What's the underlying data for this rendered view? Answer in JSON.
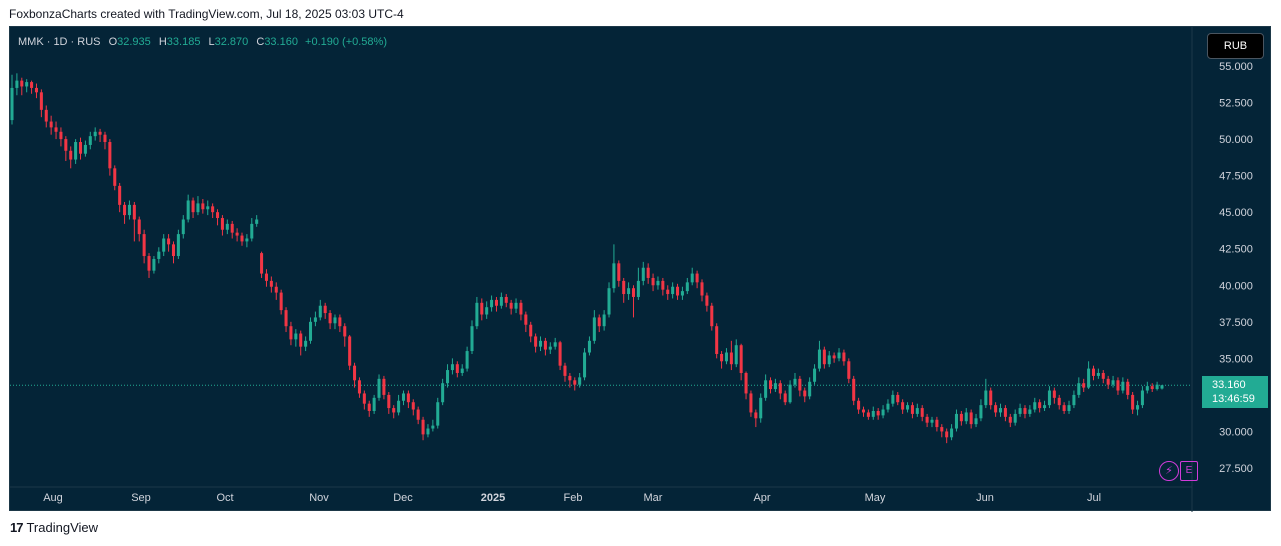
{
  "header": {
    "text": "FoxbonzaCharts created with TradingView.com, Jul 18, 2025 03:03 UTC-4"
  },
  "legend": {
    "symbol": "MMK · 1D · RUS",
    "open_label": "O",
    "open": "32.935",
    "high_label": "H",
    "high": "33.185",
    "low_label": "L",
    "low": "32.870",
    "close_label": "C",
    "close": "33.160",
    "change": "+0.190 (+0.58%)"
  },
  "currency_button": "RUB",
  "price_tag": {
    "price": "33.160",
    "countdown": "13:46:59"
  },
  "icons": {
    "flash": "lightning-icon",
    "e_button": "E"
  },
  "footer": {
    "logo": "17",
    "brand": "TradingView"
  },
  "colors": {
    "up": "#22ab94",
    "down": "#f23645",
    "background": "#042437"
  },
  "chart_data": {
    "type": "candlestick",
    "y_axis": {
      "ticks": [
        "55.000",
        "52.500",
        "50.000",
        "47.500",
        "45.000",
        "42.500",
        "40.000",
        "37.500",
        "35.000",
        "32.500",
        "30.000",
        "27.500"
      ],
      "ylim": [
        26.5,
        56.5
      ]
    },
    "x_axis": {
      "labels": [
        "Aug",
        "Sep",
        "Oct",
        "Nov",
        "Dec",
        "2025",
        "Feb",
        "Mar",
        "Apr",
        "May",
        "Jun",
        "Jul"
      ]
    },
    "candles": [
      [
        51.3,
        53.5,
        54.4,
        51.0
      ],
      [
        53.5,
        54.0,
        54.5,
        53.0
      ],
      [
        54.0,
        53.6,
        54.2,
        53.0
      ],
      [
        53.6,
        53.9,
        54.1,
        53.2
      ],
      [
        53.9,
        53.5,
        54.0,
        53.1
      ],
      [
        53.5,
        53.2,
        53.8,
        52.8
      ],
      [
        53.2,
        52.0,
        53.4,
        51.5
      ],
      [
        52.0,
        51.2,
        52.3,
        50.8
      ],
      [
        51.2,
        50.8,
        51.6,
        50.3
      ],
      [
        50.8,
        50.5,
        51.2,
        50.0
      ],
      [
        50.5,
        50.0,
        50.8,
        49.5
      ],
      [
        50.0,
        49.2,
        50.2,
        48.5
      ],
      [
        49.2,
        48.6,
        49.5,
        48.0
      ],
      [
        48.6,
        49.8,
        50.0,
        48.3
      ],
      [
        49.8,
        49.0,
        50.1,
        48.6
      ],
      [
        49.0,
        49.6,
        49.9,
        48.8
      ],
      [
        49.6,
        50.2,
        50.5,
        49.3
      ],
      [
        50.2,
        50.5,
        50.8,
        49.9
      ],
      [
        50.5,
        50.3,
        50.7,
        49.8
      ],
      [
        50.3,
        49.8,
        50.5,
        49.3
      ],
      [
        49.8,
        48.0,
        50.0,
        47.5
      ],
      [
        48.0,
        46.8,
        48.2,
        46.5
      ],
      [
        46.8,
        45.5,
        47.0,
        45.0
      ],
      [
        45.5,
        44.8,
        45.7,
        44.2
      ],
      [
        44.8,
        45.5,
        45.8,
        44.5
      ],
      [
        45.5,
        44.5,
        45.7,
        43.0
      ],
      [
        44.5,
        43.5,
        44.7,
        43.0
      ],
      [
        43.5,
        42.0,
        43.8,
        41.5
      ],
      [
        42.0,
        41.0,
        42.2,
        40.5
      ],
      [
        41.0,
        41.8,
        42.0,
        40.8
      ],
      [
        41.8,
        42.3,
        42.6,
        41.5
      ],
      [
        42.3,
        43.2,
        43.5,
        42.0
      ],
      [
        43.2,
        42.8,
        43.5,
        42.3
      ],
      [
        42.8,
        42.0,
        43.0,
        41.5
      ],
      [
        42.0,
        43.5,
        43.8,
        41.8
      ],
      [
        43.5,
        44.5,
        44.8,
        43.2
      ],
      [
        44.5,
        45.8,
        46.2,
        44.3
      ],
      [
        45.8,
        45.0,
        46.0,
        44.6
      ],
      [
        45.0,
        45.6,
        46.1,
        44.8
      ],
      [
        45.6,
        45.2,
        45.9,
        44.9
      ],
      [
        45.2,
        45.4,
        45.8,
        44.8
      ],
      [
        45.4,
        45.0,
        45.6,
        44.6
      ],
      [
        45.0,
        44.6,
        45.2,
        44.1
      ],
      [
        44.6,
        43.8,
        44.8,
        43.4
      ],
      [
        43.8,
        44.2,
        44.5,
        43.5
      ],
      [
        44.2,
        43.6,
        44.4,
        43.2
      ],
      [
        43.6,
        43.4,
        43.9,
        43.0
      ],
      [
        43.4,
        43.0,
        43.6,
        42.7
      ],
      [
        43.0,
        43.2,
        43.5,
        42.6
      ],
      [
        43.2,
        44.2,
        44.6,
        43.0
      ],
      [
        44.2,
        44.5,
        44.8,
        44.0
      ],
      [
        42.2,
        40.8,
        42.3,
        40.5
      ],
      [
        40.8,
        40.3,
        41.1,
        39.9
      ],
      [
        40.3,
        39.9,
        40.6,
        39.5
      ],
      [
        39.9,
        39.5,
        40.2,
        39.0
      ],
      [
        39.5,
        38.3,
        39.7,
        38.0
      ],
      [
        38.3,
        37.2,
        38.5,
        36.8
      ],
      [
        37.2,
        36.3,
        37.5,
        35.9
      ],
      [
        36.3,
        36.7,
        37.0,
        35.8
      ],
      [
        36.7,
        35.8,
        36.9,
        35.2
      ],
      [
        35.8,
        36.2,
        36.5,
        35.5
      ],
      [
        36.2,
        37.5,
        37.8,
        36.0
      ],
      [
        37.5,
        37.8,
        38.2,
        37.2
      ],
      [
        37.8,
        38.6,
        39.0,
        37.6
      ],
      [
        38.6,
        38.1,
        38.8,
        37.7
      ],
      [
        38.1,
        37.4,
        38.3,
        37.0
      ],
      [
        37.4,
        37.8,
        38.0,
        37.0
      ],
      [
        37.8,
        37.2,
        38.0,
        36.8
      ],
      [
        37.2,
        36.5,
        37.4,
        35.8
      ],
      [
        36.5,
        34.5,
        36.6,
        34.2
      ],
      [
        34.5,
        33.5,
        34.7,
        33.0
      ],
      [
        33.5,
        32.6,
        33.7,
        32.3
      ],
      [
        32.6,
        31.9,
        32.8,
        31.5
      ],
      [
        31.9,
        31.4,
        32.1,
        31.0
      ],
      [
        31.4,
        32.3,
        32.5,
        31.2
      ],
      [
        32.3,
        33.6,
        33.9,
        32.1
      ],
      [
        33.6,
        32.5,
        33.8,
        32.2
      ],
      [
        32.5,
        31.6,
        32.7,
        31.2
      ],
      [
        31.6,
        31.3,
        31.8,
        30.9
      ],
      [
        31.3,
        32.1,
        32.5,
        31.1
      ],
      [
        32.1,
        32.6,
        32.8,
        31.8
      ],
      [
        32.6,
        32.0,
        32.8,
        31.6
      ],
      [
        32.0,
        31.5,
        32.2,
        31.1
      ],
      [
        31.5,
        30.8,
        31.7,
        30.5
      ],
      [
        30.8,
        29.8,
        31.0,
        29.4
      ],
      [
        29.8,
        30.2,
        30.5,
        29.6
      ],
      [
        30.2,
        30.4,
        30.8,
        30.0
      ],
      [
        30.4,
        32.0,
        32.3,
        30.2
      ],
      [
        32.0,
        33.3,
        33.6,
        31.8
      ],
      [
        33.3,
        34.2,
        34.6,
        33.0
      ],
      [
        34.2,
        34.6,
        35.0,
        33.9
      ],
      [
        34.6,
        34.0,
        34.8,
        33.7
      ],
      [
        34.0,
        34.3,
        34.6,
        33.8
      ],
      [
        34.3,
        35.5,
        35.8,
        34.1
      ],
      [
        35.5,
        37.2,
        37.6,
        35.3
      ],
      [
        37.2,
        38.8,
        39.2,
        37.0
      ],
      [
        38.8,
        38.0,
        39.1,
        37.6
      ],
      [
        38.0,
        38.5,
        38.9,
        37.7
      ],
      [
        38.5,
        39.0,
        39.3,
        38.2
      ],
      [
        39.0,
        38.6,
        39.2,
        38.2
      ],
      [
        38.6,
        39.2,
        39.5,
        38.4
      ],
      [
        39.2,
        38.8,
        39.4,
        38.5
      ],
      [
        38.8,
        38.4,
        39.0,
        38.0
      ],
      [
        38.4,
        38.8,
        39.1,
        38.1
      ],
      [
        38.8,
        38.0,
        39.0,
        37.6
      ],
      [
        38.0,
        37.3,
        38.2,
        36.8
      ],
      [
        37.3,
        36.5,
        37.5,
        36.1
      ],
      [
        36.5,
        35.8,
        36.7,
        35.4
      ],
      [
        35.8,
        36.2,
        36.5,
        35.5
      ],
      [
        36.2,
        35.6,
        36.4,
        35.2
      ],
      [
        35.6,
        35.8,
        36.1,
        35.3
      ],
      [
        35.8,
        36.1,
        36.4,
        35.6
      ],
      [
        36.1,
        34.5,
        36.2,
        34.2
      ],
      [
        34.5,
        33.8,
        34.7,
        33.4
      ],
      [
        33.8,
        33.5,
        34.0,
        33.0
      ],
      [
        33.5,
        33.2,
        33.7,
        32.8
      ],
      [
        33.2,
        33.7,
        34.0,
        33.0
      ],
      [
        33.7,
        35.4,
        35.7,
        33.5
      ],
      [
        35.4,
        36.2,
        36.5,
        35.2
      ],
      [
        36.2,
        37.8,
        38.3,
        36.0
      ],
      [
        37.8,
        37.2,
        38.0,
        36.8
      ],
      [
        37.2,
        38.0,
        38.3,
        36.9
      ],
      [
        38.0,
        39.8,
        40.2,
        37.8
      ],
      [
        39.8,
        41.5,
        42.8,
        39.5
      ],
      [
        41.5,
        40.3,
        41.7,
        39.9
      ],
      [
        40.3,
        39.4,
        40.5,
        38.8
      ],
      [
        39.4,
        39.8,
        40.2,
        39.0
      ],
      [
        39.8,
        39.2,
        40.0,
        37.8
      ],
      [
        39.2,
        40.3,
        41.2,
        39.0
      ],
      [
        40.3,
        41.2,
        41.6,
        40.0
      ],
      [
        41.2,
        40.5,
        41.5,
        40.1
      ],
      [
        40.5,
        40.0,
        40.8,
        39.6
      ],
      [
        40.0,
        40.3,
        40.6,
        39.7
      ],
      [
        40.3,
        39.7,
        40.5,
        39.3
      ],
      [
        39.7,
        39.4,
        40.0,
        39.0
      ],
      [
        39.4,
        39.9,
        40.2,
        39.1
      ],
      [
        39.9,
        39.3,
        40.1,
        39.0
      ],
      [
        39.3,
        39.6,
        39.9,
        39.0
      ],
      [
        39.6,
        40.2,
        40.5,
        39.4
      ],
      [
        40.2,
        40.8,
        41.2,
        40.0
      ],
      [
        40.8,
        40.2,
        41.0,
        39.8
      ],
      [
        40.2,
        39.3,
        40.4,
        38.9
      ],
      [
        39.3,
        38.6,
        39.5,
        38.2
      ],
      [
        38.6,
        37.2,
        38.8,
        36.9
      ],
      [
        37.2,
        35.3,
        37.4,
        35.0
      ],
      [
        35.3,
        34.8,
        35.5,
        34.3
      ],
      [
        34.8,
        35.4,
        35.7,
        34.6
      ],
      [
        35.4,
        34.6,
        36.2,
        34.2
      ],
      [
        34.6,
        35.9,
        36.3,
        34.4
      ],
      [
        35.9,
        34.0,
        36.0,
        33.5
      ],
      [
        34.0,
        32.6,
        34.1,
        32.2
      ],
      [
        32.6,
        31.3,
        32.8,
        31.0
      ],
      [
        31.3,
        30.9,
        31.5,
        30.3
      ],
      [
        30.9,
        32.3,
        32.6,
        30.6
      ],
      [
        32.3,
        33.5,
        33.9,
        32.1
      ],
      [
        33.5,
        32.9,
        33.7,
        32.6
      ],
      [
        32.9,
        33.3,
        33.6,
        32.7
      ],
      [
        33.3,
        32.6,
        33.5,
        32.2
      ],
      [
        32.6,
        32.0,
        32.8,
        31.8
      ],
      [
        32.0,
        33.2,
        33.5,
        31.9
      ],
      [
        33.2,
        33.6,
        34.0,
        33.0
      ],
      [
        33.6,
        32.8,
        33.8,
        32.4
      ],
      [
        32.8,
        32.4,
        33.0,
        32.0
      ],
      [
        32.4,
        33.4,
        33.7,
        32.2
      ],
      [
        33.4,
        34.3,
        34.6,
        33.2
      ],
      [
        34.3,
        35.6,
        36.2,
        34.1
      ],
      [
        35.6,
        34.6,
        35.8,
        34.3
      ],
      [
        34.6,
        35.2,
        35.5,
        34.4
      ],
      [
        35.2,
        35.0,
        35.4,
        34.7
      ],
      [
        35.0,
        35.4,
        35.7,
        34.8
      ],
      [
        35.4,
        34.8,
        35.6,
        34.5
      ],
      [
        34.8,
        33.6,
        35.0,
        33.3
      ],
      [
        33.6,
        32.1,
        33.8,
        31.8
      ],
      [
        32.1,
        31.5,
        32.3,
        31.2
      ],
      [
        31.5,
        31.3,
        31.7,
        31.0
      ],
      [
        31.3,
        31.0,
        31.5,
        30.8
      ],
      [
        31.0,
        31.4,
        31.7,
        30.8
      ],
      [
        31.4,
        31.1,
        31.6,
        30.8
      ],
      [
        31.1,
        31.5,
        31.8,
        30.9
      ],
      [
        31.5,
        31.9,
        32.2,
        31.3
      ],
      [
        31.9,
        32.5,
        32.8,
        31.7
      ],
      [
        32.5,
        32.0,
        32.7,
        31.8
      ],
      [
        32.0,
        31.5,
        32.2,
        31.2
      ],
      [
        31.5,
        31.8,
        32.0,
        31.3
      ],
      [
        31.8,
        31.2,
        32.0,
        30.9
      ],
      [
        31.2,
        31.6,
        31.9,
        31.0
      ],
      [
        31.6,
        31.0,
        31.8,
        30.7
      ],
      [
        31.0,
        30.6,
        31.2,
        30.3
      ],
      [
        30.6,
        30.8,
        31.0,
        30.3
      ],
      [
        30.8,
        30.3,
        31.0,
        30.0
      ],
      [
        30.3,
        30.0,
        30.5,
        29.6
      ],
      [
        30.0,
        29.6,
        30.2,
        29.2
      ],
      [
        29.6,
        30.2,
        30.5,
        29.4
      ],
      [
        30.2,
        31.2,
        31.5,
        30.0
      ],
      [
        31.2,
        30.7,
        31.4,
        30.4
      ],
      [
        30.7,
        31.3,
        31.6,
        30.5
      ],
      [
        31.3,
        30.5,
        31.5,
        30.2
      ],
      [
        30.5,
        30.9,
        31.2,
        30.3
      ],
      [
        30.9,
        31.8,
        32.2,
        30.7
      ],
      [
        31.8,
        32.8,
        33.6,
        31.6
      ],
      [
        32.8,
        31.8,
        33.0,
        31.5
      ],
      [
        31.8,
        31.3,
        32.0,
        31.0
      ],
      [
        31.3,
        31.6,
        31.9,
        31.0
      ],
      [
        31.6,
        31.0,
        31.8,
        30.7
      ],
      [
        31.0,
        30.6,
        31.2,
        30.3
      ],
      [
        30.6,
        31.2,
        31.5,
        30.4
      ],
      [
        31.2,
        31.6,
        31.9,
        31.0
      ],
      [
        31.6,
        31.2,
        31.8,
        30.9
      ],
      [
        31.2,
        31.5,
        31.8,
        31.0
      ],
      [
        31.5,
        32.0,
        32.3,
        31.3
      ],
      [
        32.0,
        31.6,
        32.2,
        31.3
      ],
      [
        31.6,
        31.8,
        32.1,
        31.4
      ],
      [
        31.8,
        32.8,
        33.1,
        31.6
      ],
      [
        32.8,
        32.3,
        33.0,
        31.9
      ],
      [
        32.3,
        31.8,
        32.5,
        31.5
      ],
      [
        31.8,
        31.4,
        32.0,
        31.2
      ],
      [
        31.4,
        31.8,
        32.1,
        31.2
      ],
      [
        31.8,
        32.5,
        32.8,
        31.6
      ],
      [
        32.5,
        33.3,
        33.7,
        32.3
      ],
      [
        33.3,
        33.0,
        33.6,
        32.7
      ],
      [
        33.0,
        34.3,
        34.8,
        32.9
      ],
      [
        34.3,
        33.8,
        34.5,
        33.5
      ],
      [
        33.8,
        34.0,
        34.3,
        33.6
      ],
      [
        34.0,
        33.6,
        34.2,
        33.3
      ],
      [
        33.6,
        33.2,
        33.8,
        32.9
      ],
      [
        33.2,
        33.5,
        33.8,
        33.0
      ],
      [
        33.5,
        32.8,
        33.7,
        32.5
      ],
      [
        32.8,
        33.4,
        33.7,
        32.6
      ],
      [
        33.4,
        32.5,
        33.6,
        32.2
      ],
      [
        32.5,
        31.5,
        32.7,
        31.2
      ],
      [
        31.5,
        31.8,
        32.1,
        31.1
      ],
      [
        31.8,
        32.8,
        33.1,
        31.6
      ],
      [
        32.8,
        33.1,
        33.4,
        32.6
      ],
      [
        33.1,
        32.9,
        33.3,
        32.7
      ],
      [
        32.9,
        33.2,
        33.4,
        32.8
      ],
      [
        32.935,
        33.16,
        33.185,
        32.87
      ]
    ],
    "last_price": 33.16
  }
}
